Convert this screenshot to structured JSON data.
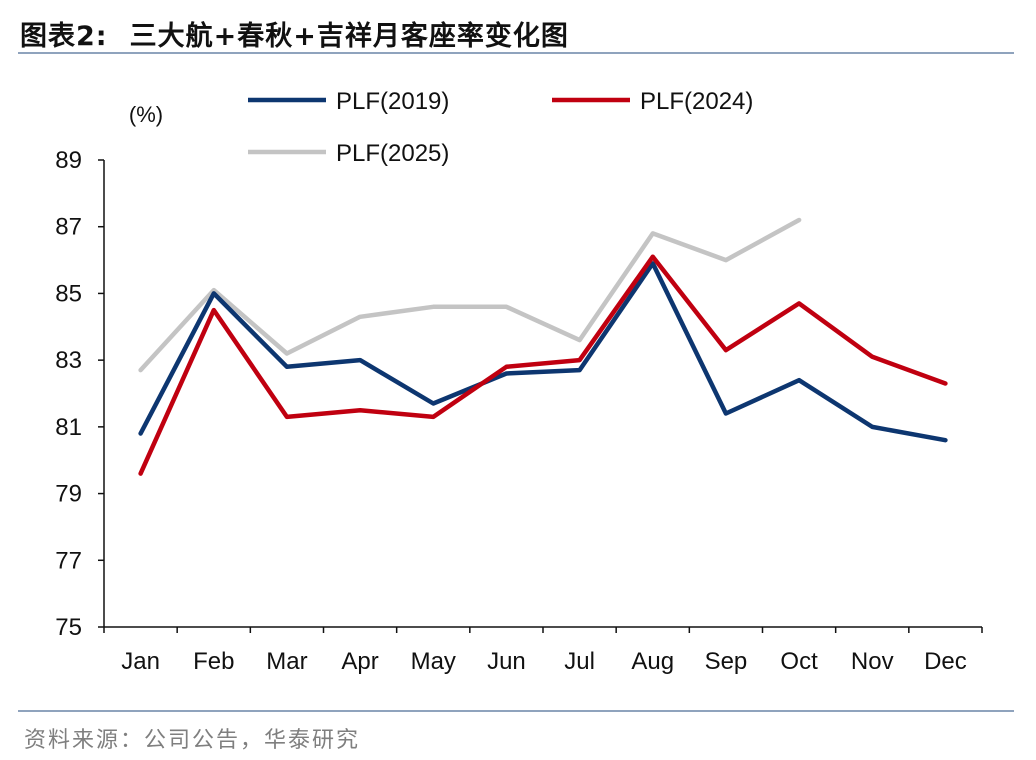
{
  "header": {
    "figure_label": "图表2:",
    "title": "三大航+春秋+吉祥月客座率变化图"
  },
  "source": "资料来源：公司公告，华泰研究",
  "chart_data": {
    "type": "line",
    "title": "三大航+春秋+吉祥月客座率变化图",
    "ylabel": "(%)",
    "xlabel": "",
    "categories": [
      "Jan",
      "Feb",
      "Mar",
      "Apr",
      "May",
      "Jun",
      "Jul",
      "Aug",
      "Sep",
      "Oct",
      "Nov",
      "Dec"
    ],
    "ylim": [
      75,
      89
    ],
    "yticks": [
      75,
      77,
      79,
      81,
      83,
      85,
      87,
      89
    ],
    "grid": false,
    "legend_position": "top",
    "series": [
      {
        "name": "PLF(2019)",
        "color": "#0d3670",
        "values": [
          80.8,
          85.0,
          82.8,
          83.0,
          81.7,
          82.6,
          82.7,
          85.9,
          81.4,
          82.4,
          81.0,
          80.6
        ]
      },
      {
        "name": "PLF(2024)",
        "color": "#c00010",
        "values": [
          79.6,
          84.5,
          81.3,
          81.5,
          81.3,
          82.8,
          83.0,
          86.1,
          83.3,
          84.7,
          83.1,
          82.3
        ]
      },
      {
        "name": "PLF(2025)",
        "color": "#c4c4c4",
        "values": [
          82.7,
          85.1,
          83.2,
          84.3,
          84.6,
          84.6,
          83.6,
          86.8,
          86.0,
          87.2,
          null,
          null
        ]
      }
    ]
  }
}
